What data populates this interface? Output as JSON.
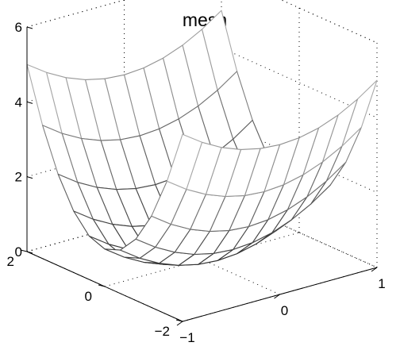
{
  "chart_data": {
    "type": "surface-mesh",
    "title": "mesh",
    "function": "z = x^2 + y^2",
    "x": [
      -1,
      -0.8,
      -0.6,
      -0.4,
      -0.2,
      0,
      0.2,
      0.4,
      0.6,
      0.8,
      1
    ],
    "y": [
      -2,
      -1.6,
      -1.2,
      -0.8,
      -0.4,
      0,
      0.4,
      0.8,
      1.2,
      1.6,
      2
    ],
    "xlim": [
      -1,
      1
    ],
    "ylim": [
      -2,
      2
    ],
    "zlim": [
      0,
      6
    ],
    "xticks": [
      "−1",
      "0",
      "1"
    ],
    "yticks": [
      "−2",
      "0",
      "2"
    ],
    "zticks": [
      "0",
      "2",
      "4",
      "6"
    ],
    "grid": true,
    "colors": {
      "mesh_light": "#e6e6e6",
      "mesh_dark": "#1a1a1a",
      "axes": "#000000"
    }
  }
}
